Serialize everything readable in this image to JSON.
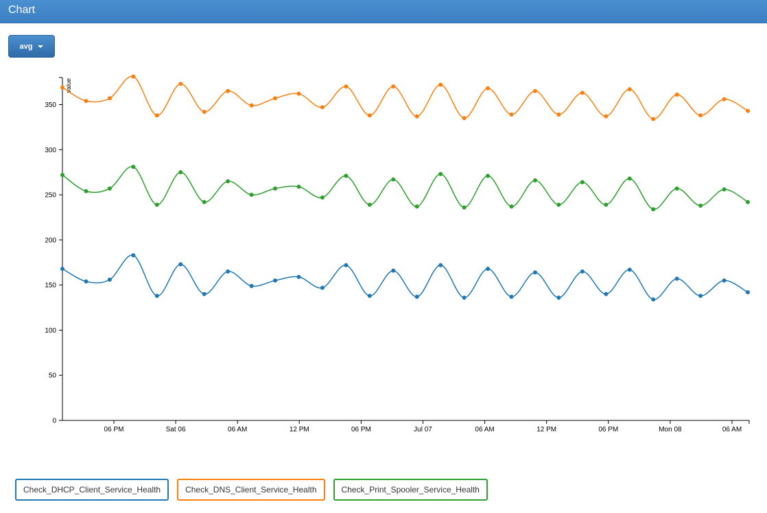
{
  "header": {
    "title": "Chart"
  },
  "toolbar": {
    "aggregate_label": "avg"
  },
  "colors": {
    "dhcp": "#1f77b4",
    "dns": "#ff7f0e",
    "spooler": "#2ca02c"
  },
  "chart_data": {
    "type": "line",
    "ylabel": "value",
    "xlabel": "",
    "ylim": [
      0,
      380
    ],
    "yticks": [
      0,
      50,
      100,
      150,
      200,
      250,
      300,
      350
    ],
    "grid": false,
    "legend_position": "bottom",
    "xtick_labels": [
      "06 PM",
      "Sat 06",
      "06 AM",
      "12 PM",
      "06 PM",
      "Jul 07",
      "06 AM",
      "12 PM",
      "06 PM",
      "Mon 08",
      "06 AM"
    ],
    "x_points_per_tick": [
      0,
      1,
      2,
      3,
      4,
      5,
      6,
      7,
      8,
      9,
      10,
      11,
      12,
      13,
      14,
      15,
      16,
      17,
      18,
      19,
      20,
      21,
      22,
      23,
      24,
      25,
      26,
      27,
      28,
      29
    ],
    "series": [
      {
        "name": "Check_DHCP_Client_Service_Health",
        "color": "#1f77b4",
        "values": [
          168,
          154,
          156,
          183,
          138,
          173,
          140,
          165,
          149,
          155,
          159,
          147,
          172,
          138,
          166,
          137,
          172,
          136,
          168,
          137,
          164,
          136,
          165,
          140,
          167,
          134,
          157,
          138,
          155,
          142
        ]
      },
      {
        "name": "Check_DNS_Client_Service_Health",
        "color": "#ff7f0e",
        "values": [
          369,
          354,
          357,
          381,
          338,
          373,
          342,
          365,
          349,
          357,
          362,
          347,
          370,
          338,
          370,
          337,
          372,
          335,
          368,
          339,
          365,
          339,
          363,
          337,
          367,
          334,
          361,
          338,
          356,
          343
        ]
      },
      {
        "name": "Check_Print_Spooler_Service_Health",
        "color": "#2ca02c",
        "values": [
          272,
          254,
          257,
          281,
          239,
          275,
          242,
          265,
          250,
          257,
          259,
          247,
          271,
          239,
          267,
          237,
          273,
          236,
          271,
          237,
          266,
          239,
          264,
          239,
          268,
          234,
          257,
          238,
          256,
          242
        ]
      }
    ]
  },
  "legend": {
    "items": [
      {
        "label": "Check_DHCP_Client_Service_Health",
        "color": "#1f77b4"
      },
      {
        "label": "Check_DNS_Client_Service_Health",
        "color": "#ff7f0e"
      },
      {
        "label": "Check_Print_Spooler_Service_Health",
        "color": "#2ca02c"
      }
    ]
  }
}
